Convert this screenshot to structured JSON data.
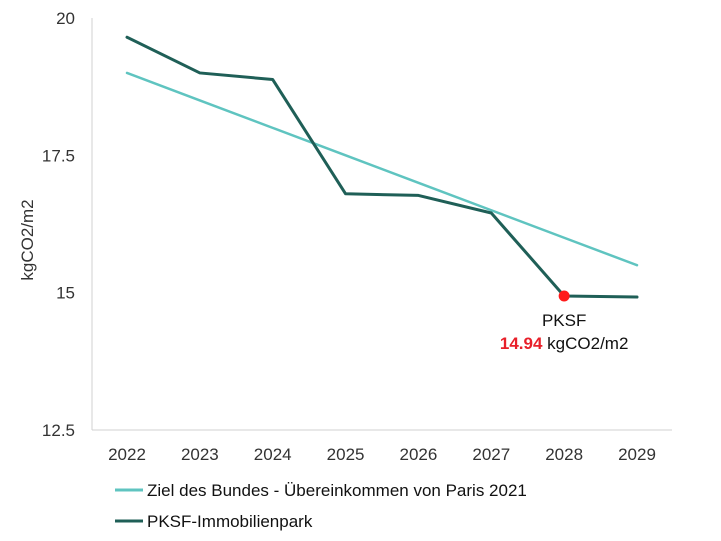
{
  "chart_data": {
    "type": "line",
    "xlabel": "",
    "ylabel": "kgCO2/m2",
    "x": [
      "2022",
      "2023",
      "2024",
      "2025",
      "2026",
      "2027",
      "2028",
      "2029"
    ],
    "ylim": [
      12.5,
      20
    ],
    "yticks": [
      "20",
      "17.5",
      "15",
      "12.5"
    ],
    "ytick_values": [
      20,
      17.5,
      15,
      12.5
    ],
    "grid": false,
    "legend_position": "bottom-left",
    "series": [
      {
        "name": "Ziel des Bundes - Übereinkommen von Paris 2021",
        "color": "#5fc4c0",
        "values": [
          19.0,
          18.5,
          18.0,
          17.5,
          17.0,
          16.5,
          16.0,
          15.5
        ]
      },
      {
        "name": "PKSF-Immobilienpark",
        "color": "#1f5f57",
        "values": [
          19.65,
          19.0,
          18.88,
          16.8,
          16.77,
          16.45,
          14.94,
          14.92
        ]
      }
    ],
    "annotation": {
      "label": "PKSF",
      "value": "14.94",
      "unit": "kgCO2/m2",
      "series_index": 1,
      "point_index": 6,
      "marker_color": "#ff1a1a",
      "value_color": "#e8202a"
    }
  }
}
